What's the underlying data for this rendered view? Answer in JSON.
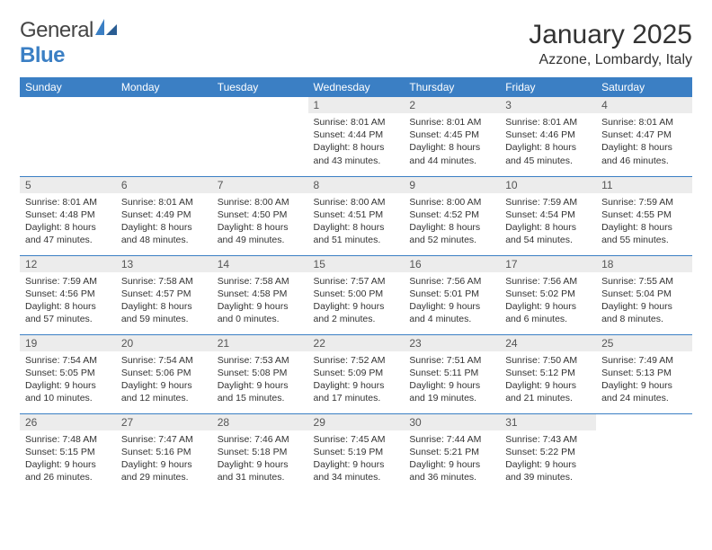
{
  "brand": {
    "word1": "General",
    "word2": "Blue"
  },
  "title": "January 2025",
  "location": "Azzone, Lombardy, Italy",
  "colors": {
    "header_bg": "#3b7fc4",
    "header_text": "#ffffff",
    "daynum_bg": "#ececec",
    "border": "#3b7fc4",
    "text": "#333333",
    "page_bg": "#ffffff"
  },
  "day_headers": [
    "Sunday",
    "Monday",
    "Tuesday",
    "Wednesday",
    "Thursday",
    "Friday",
    "Saturday"
  ],
  "weeks": [
    [
      {
        "n": "",
        "l1": "",
        "l2": "",
        "l3": "",
        "l4": "",
        "empty": true
      },
      {
        "n": "",
        "l1": "",
        "l2": "",
        "l3": "",
        "l4": "",
        "empty": true
      },
      {
        "n": "",
        "l1": "",
        "l2": "",
        "l3": "",
        "l4": "",
        "empty": true
      },
      {
        "n": "1",
        "l1": "Sunrise: 8:01 AM",
        "l2": "Sunset: 4:44 PM",
        "l3": "Daylight: 8 hours",
        "l4": "and 43 minutes."
      },
      {
        "n": "2",
        "l1": "Sunrise: 8:01 AM",
        "l2": "Sunset: 4:45 PM",
        "l3": "Daylight: 8 hours",
        "l4": "and 44 minutes."
      },
      {
        "n": "3",
        "l1": "Sunrise: 8:01 AM",
        "l2": "Sunset: 4:46 PM",
        "l3": "Daylight: 8 hours",
        "l4": "and 45 minutes."
      },
      {
        "n": "4",
        "l1": "Sunrise: 8:01 AM",
        "l2": "Sunset: 4:47 PM",
        "l3": "Daylight: 8 hours",
        "l4": "and 46 minutes."
      }
    ],
    [
      {
        "n": "5",
        "l1": "Sunrise: 8:01 AM",
        "l2": "Sunset: 4:48 PM",
        "l3": "Daylight: 8 hours",
        "l4": "and 47 minutes."
      },
      {
        "n": "6",
        "l1": "Sunrise: 8:01 AM",
        "l2": "Sunset: 4:49 PM",
        "l3": "Daylight: 8 hours",
        "l4": "and 48 minutes."
      },
      {
        "n": "7",
        "l1": "Sunrise: 8:00 AM",
        "l2": "Sunset: 4:50 PM",
        "l3": "Daylight: 8 hours",
        "l4": "and 49 minutes."
      },
      {
        "n": "8",
        "l1": "Sunrise: 8:00 AM",
        "l2": "Sunset: 4:51 PM",
        "l3": "Daylight: 8 hours",
        "l4": "and 51 minutes."
      },
      {
        "n": "9",
        "l1": "Sunrise: 8:00 AM",
        "l2": "Sunset: 4:52 PM",
        "l3": "Daylight: 8 hours",
        "l4": "and 52 minutes."
      },
      {
        "n": "10",
        "l1": "Sunrise: 7:59 AM",
        "l2": "Sunset: 4:54 PM",
        "l3": "Daylight: 8 hours",
        "l4": "and 54 minutes."
      },
      {
        "n": "11",
        "l1": "Sunrise: 7:59 AM",
        "l2": "Sunset: 4:55 PM",
        "l3": "Daylight: 8 hours",
        "l4": "and 55 minutes."
      }
    ],
    [
      {
        "n": "12",
        "l1": "Sunrise: 7:59 AM",
        "l2": "Sunset: 4:56 PM",
        "l3": "Daylight: 8 hours",
        "l4": "and 57 minutes."
      },
      {
        "n": "13",
        "l1": "Sunrise: 7:58 AM",
        "l2": "Sunset: 4:57 PM",
        "l3": "Daylight: 8 hours",
        "l4": "and 59 minutes."
      },
      {
        "n": "14",
        "l1": "Sunrise: 7:58 AM",
        "l2": "Sunset: 4:58 PM",
        "l3": "Daylight: 9 hours",
        "l4": "and 0 minutes."
      },
      {
        "n": "15",
        "l1": "Sunrise: 7:57 AM",
        "l2": "Sunset: 5:00 PM",
        "l3": "Daylight: 9 hours",
        "l4": "and 2 minutes."
      },
      {
        "n": "16",
        "l1": "Sunrise: 7:56 AM",
        "l2": "Sunset: 5:01 PM",
        "l3": "Daylight: 9 hours",
        "l4": "and 4 minutes."
      },
      {
        "n": "17",
        "l1": "Sunrise: 7:56 AM",
        "l2": "Sunset: 5:02 PM",
        "l3": "Daylight: 9 hours",
        "l4": "and 6 minutes."
      },
      {
        "n": "18",
        "l1": "Sunrise: 7:55 AM",
        "l2": "Sunset: 5:04 PM",
        "l3": "Daylight: 9 hours",
        "l4": "and 8 minutes."
      }
    ],
    [
      {
        "n": "19",
        "l1": "Sunrise: 7:54 AM",
        "l2": "Sunset: 5:05 PM",
        "l3": "Daylight: 9 hours",
        "l4": "and 10 minutes."
      },
      {
        "n": "20",
        "l1": "Sunrise: 7:54 AM",
        "l2": "Sunset: 5:06 PM",
        "l3": "Daylight: 9 hours",
        "l4": "and 12 minutes."
      },
      {
        "n": "21",
        "l1": "Sunrise: 7:53 AM",
        "l2": "Sunset: 5:08 PM",
        "l3": "Daylight: 9 hours",
        "l4": "and 15 minutes."
      },
      {
        "n": "22",
        "l1": "Sunrise: 7:52 AM",
        "l2": "Sunset: 5:09 PM",
        "l3": "Daylight: 9 hours",
        "l4": "and 17 minutes."
      },
      {
        "n": "23",
        "l1": "Sunrise: 7:51 AM",
        "l2": "Sunset: 5:11 PM",
        "l3": "Daylight: 9 hours",
        "l4": "and 19 minutes."
      },
      {
        "n": "24",
        "l1": "Sunrise: 7:50 AM",
        "l2": "Sunset: 5:12 PM",
        "l3": "Daylight: 9 hours",
        "l4": "and 21 minutes."
      },
      {
        "n": "25",
        "l1": "Sunrise: 7:49 AM",
        "l2": "Sunset: 5:13 PM",
        "l3": "Daylight: 9 hours",
        "l4": "and 24 minutes."
      }
    ],
    [
      {
        "n": "26",
        "l1": "Sunrise: 7:48 AM",
        "l2": "Sunset: 5:15 PM",
        "l3": "Daylight: 9 hours",
        "l4": "and 26 minutes."
      },
      {
        "n": "27",
        "l1": "Sunrise: 7:47 AM",
        "l2": "Sunset: 5:16 PM",
        "l3": "Daylight: 9 hours",
        "l4": "and 29 minutes."
      },
      {
        "n": "28",
        "l1": "Sunrise: 7:46 AM",
        "l2": "Sunset: 5:18 PM",
        "l3": "Daylight: 9 hours",
        "l4": "and 31 minutes."
      },
      {
        "n": "29",
        "l1": "Sunrise: 7:45 AM",
        "l2": "Sunset: 5:19 PM",
        "l3": "Daylight: 9 hours",
        "l4": "and 34 minutes."
      },
      {
        "n": "30",
        "l1": "Sunrise: 7:44 AM",
        "l2": "Sunset: 5:21 PM",
        "l3": "Daylight: 9 hours",
        "l4": "and 36 minutes."
      },
      {
        "n": "31",
        "l1": "Sunrise: 7:43 AM",
        "l2": "Sunset: 5:22 PM",
        "l3": "Daylight: 9 hours",
        "l4": "and 39 minutes."
      },
      {
        "n": "",
        "l1": "",
        "l2": "",
        "l3": "",
        "l4": "",
        "empty": true
      }
    ]
  ]
}
